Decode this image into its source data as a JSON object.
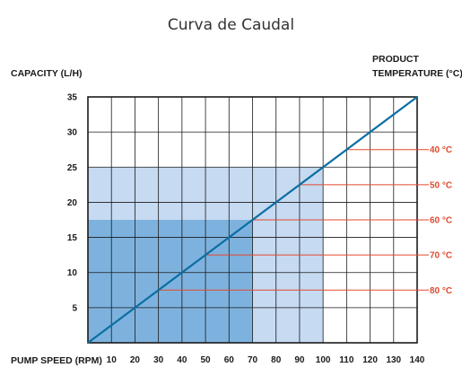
{
  "chart_data": {
    "type": "line",
    "title": "Curva de Caudal",
    "ylabel": "CAPACITY (L/H)",
    "xlabel": "PUMP SPEED (RPM)",
    "right_label_line1": "PRODUCT",
    "right_label_line2": "TEMPERATURE (°C)",
    "xlim": [
      0,
      140
    ],
    "ylim": [
      0,
      35
    ],
    "x_ticks": [
      "10",
      "20",
      "30",
      "40",
      "50",
      "60",
      "70",
      "80",
      "90",
      "100",
      "110",
      "120",
      "130",
      "140"
    ],
    "y_ticks": [
      "5",
      "10",
      "15",
      "20",
      "25",
      "30",
      "35"
    ],
    "grid": true,
    "series": [
      {
        "x": [
          0,
          140
        ],
        "y": [
          0,
          35
        ]
      }
    ],
    "shaded_regions": [
      {
        "x": [
          0,
          100
        ],
        "y": [
          0,
          25
        ],
        "color": "#c6daf1"
      },
      {
        "x": [
          0,
          70
        ],
        "y": [
          0,
          17.5
        ],
        "color": "#7eb2de"
      }
    ],
    "temperature_lines": [
      {
        "label": "40 °C",
        "x_from": 110,
        "y": 27.5
      },
      {
        "label": "50 °C",
        "x_from": 90,
        "y": 22.5
      },
      {
        "label": "60 °C",
        "x_from": 70,
        "y": 17.5
      },
      {
        "label": "70 °C",
        "x_from": 50,
        "y": 12.5
      },
      {
        "label": "80 °C",
        "x_from": 30,
        "y": 7.5
      }
    ],
    "colors": {
      "line": "#0a6ea3",
      "temperature": "#e2492f",
      "grid": "#1a1a1a"
    }
  }
}
